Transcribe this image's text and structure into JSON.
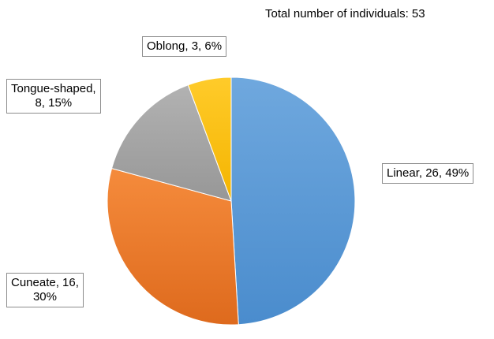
{
  "note": "Total number of individuals: 53",
  "chart_data": {
    "type": "pie",
    "title": "",
    "slices": [
      {
        "name": "Linear",
        "value": 26,
        "percent": 49,
        "color": "#5b9bd5",
        "label": [
          "Linear, 26, 49%"
        ]
      },
      {
        "name": "Cuneate",
        "value": 16,
        "percent": 30,
        "color": "#ed7d31",
        "label": [
          "Cuneate, 16,",
          "30%"
        ]
      },
      {
        "name": "Tongue-shaped",
        "value": 8,
        "percent": 15,
        "color": "#a5a5a5",
        "label": [
          "Tongue-shaped,",
          "8, 15%"
        ]
      },
      {
        "name": "Oblong",
        "value": 3,
        "percent": 6,
        "color": "#ffc000",
        "label": [
          "Oblong, 3, 6%"
        ]
      }
    ]
  }
}
